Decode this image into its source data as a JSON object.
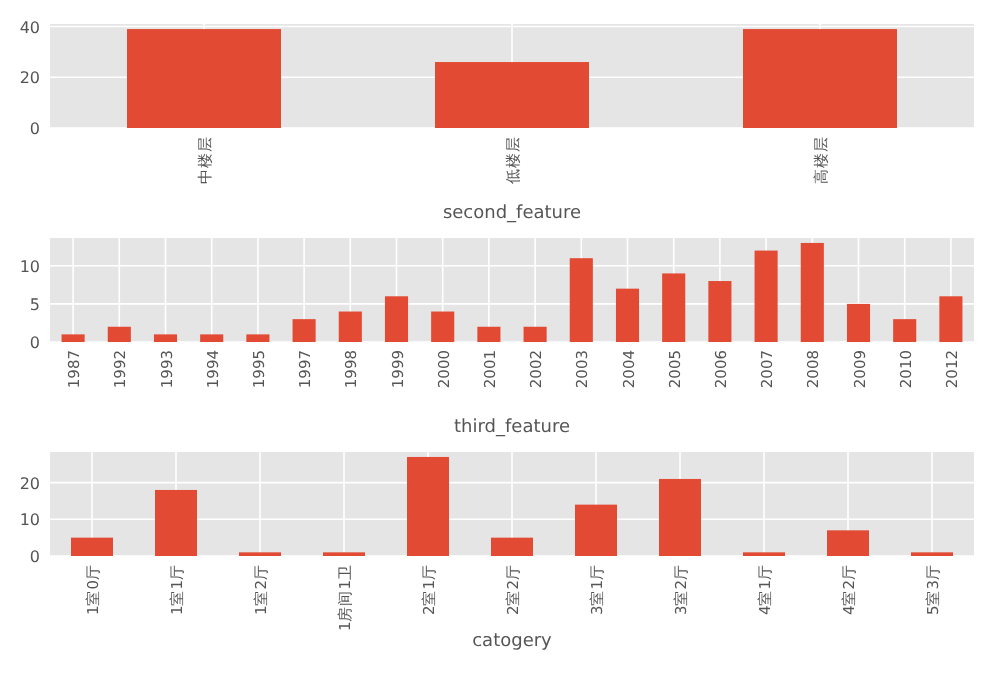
{
  "chart_data": [
    {
      "type": "bar",
      "xlabel": "second_feature",
      "categories": [
        "中楼层",
        "低楼层",
        "高楼层"
      ],
      "values": [
        39,
        26,
        39
      ],
      "color": "#e24a33",
      "ylim": [
        0,
        41
      ],
      "yticks": [
        0,
        20,
        40
      ],
      "grid": true
    },
    {
      "type": "bar",
      "xlabel": "third_feature",
      "categories": [
        "1987",
        "1992",
        "1993",
        "1994",
        "1995",
        "1997",
        "1998",
        "1999",
        "2000",
        "2001",
        "2002",
        "2003",
        "2004",
        "2005",
        "2006",
        "2007",
        "2008",
        "2009",
        "2010",
        "2012"
      ],
      "values": [
        1,
        2,
        1,
        1,
        1,
        3,
        4,
        6,
        4,
        2,
        2,
        11,
        7,
        9,
        8,
        12,
        13,
        5,
        3,
        6
      ],
      "color": "#e24a33",
      "ylim": [
        0,
        13.65
      ],
      "yticks": [
        0,
        5,
        10
      ],
      "grid": true
    },
    {
      "type": "bar",
      "xlabel": "catogery",
      "categories": [
        "1室0厅",
        "1室1厅",
        "1室2厅",
        "1房间1卫",
        "2室1厅",
        "2室2厅",
        "3室1厅",
        "3室2厅",
        "4室1厅",
        "4室2厅",
        "5室3厅"
      ],
      "values": [
        5,
        18,
        1,
        1,
        27,
        5,
        14,
        21,
        1,
        7,
        1
      ],
      "color": "#e24a33",
      "ylim": [
        0,
        28.35
      ],
      "yticks": [
        0,
        10,
        20
      ],
      "grid": true
    }
  ]
}
